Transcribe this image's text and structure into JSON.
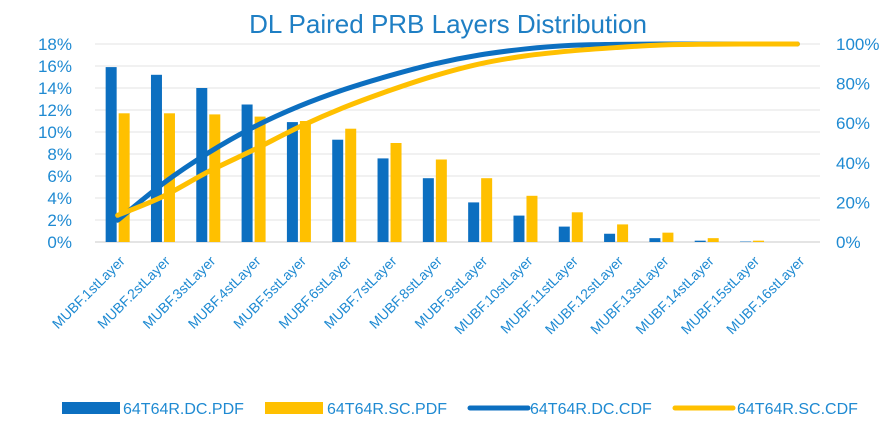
{
  "chart_data": {
    "type": "bar",
    "title": "DL Paired PRB Layers Distribution",
    "categories": [
      "MUBF.1stLayer",
      "MUBF.2stLayer",
      "MUBF.3stLayer",
      "MUBF.4stLayer",
      "MUBF.5stLayer",
      "MUBF.6stLayer",
      "MUBF.7stLayer",
      "MUBF.8stLayer",
      "MUBF.9stLayer",
      "MUBF.10stLayer",
      "MUBF.11stLayer",
      "MUBF.12stLayer",
      "MUBF.13stLayer",
      "MUBF.14stLayer",
      "MUBF.15stLayer",
      "MUBF.16stLayer"
    ],
    "y_left": {
      "ticks": [
        "0%",
        "2%",
        "4%",
        "6%",
        "8%",
        "10%",
        "12%",
        "14%",
        "16%",
        "18%"
      ],
      "ylim": [
        0,
        18
      ]
    },
    "y_right": {
      "ticks": [
        "0%",
        "20%",
        "40%",
        "60%",
        "80%",
        "100%"
      ],
      "ylim": [
        0,
        100
      ]
    },
    "grid": true,
    "legend_position": "bottom",
    "series": [
      {
        "name": "64T64R.DC.PDF",
        "kind": "bar",
        "axis": "left",
        "color": "#0c6fc0",
        "values": [
          15.9,
          15.2,
          14.0,
          12.5,
          10.9,
          9.3,
          7.6,
          5.8,
          3.6,
          2.4,
          1.4,
          0.75,
          0.35,
          0.12,
          0.04,
          0.0
        ]
      },
      {
        "name": "64T64R.SC.PDF",
        "kind": "bar",
        "axis": "left",
        "color": "#ffc000",
        "values": [
          11.7,
          11.7,
          11.6,
          11.4,
          11.0,
          10.3,
          9.0,
          7.5,
          5.8,
          4.2,
          2.7,
          1.6,
          0.85,
          0.35,
          0.12,
          0.0
        ]
      },
      {
        "name": "64T64R.DC.CDF",
        "kind": "line",
        "axis": "right",
        "color": "#0c6fc0",
        "values": [
          11.0,
          29.5,
          45.0,
          58.0,
          68.5,
          77.0,
          84.0,
          90.0,
          94.5,
          97.5,
          99.3,
          99.8,
          100,
          100,
          100,
          100
        ]
      },
      {
        "name": "64T64R.SC.CDF",
        "kind": "line",
        "axis": "right",
        "color": "#ffc000",
        "values": [
          13.5,
          23.0,
          35.5,
          46.5,
          58.0,
          68.0,
          76.5,
          84.0,
          90.0,
          94.0,
          96.5,
          98.2,
          99.5,
          99.9,
          100,
          100
        ]
      }
    ]
  }
}
